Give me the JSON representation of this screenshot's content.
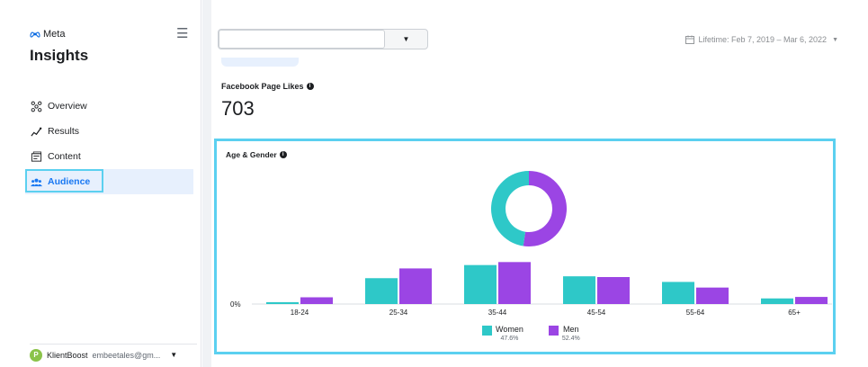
{
  "sidebar": {
    "brand": "Meta",
    "app_title": "Insights",
    "items": [
      {
        "label": "Overview",
        "icon": "overview-icon"
      },
      {
        "label": "Results",
        "icon": "results-icon"
      },
      {
        "label": "Content",
        "icon": "content-icon"
      },
      {
        "label": "Audience",
        "icon": "audience-icon",
        "active": true
      }
    ],
    "account": {
      "initial": "P",
      "name": "KlientBoost",
      "email": "embeetales@gm..."
    }
  },
  "header": {
    "select_value": "",
    "date_range": "Lifetime: Feb 7, 2019 – Mar 6, 2022"
  },
  "page_likes": {
    "label": "Facebook Page Likes",
    "value": "703"
  },
  "age_gender": {
    "title": "Age & Gender"
  },
  "colors": {
    "women": "#2ec8c8",
    "men": "#9b45e4",
    "highlight": "#5bd0f0",
    "active": "#1877f2"
  },
  "chart_data": {
    "type": "bar",
    "categories": [
      "18-24",
      "25-34",
      "35-44",
      "45-54",
      "55-64",
      "65+"
    ],
    "series": [
      {
        "name": "Women",
        "values": [
          0.5,
          6.9,
          10.4,
          7.4,
          5.9,
          1.5
        ]
      },
      {
        "name": "Men",
        "values": [
          1.8,
          9.5,
          11.2,
          7.2,
          4.4,
          1.9
        ]
      }
    ],
    "ytick_label": "0%",
    "donut": [
      {
        "name": "Women",
        "value": 47.6,
        "label": "47.6%"
      },
      {
        "name": "Men",
        "value": 52.4,
        "label": "52.4%"
      }
    ]
  }
}
